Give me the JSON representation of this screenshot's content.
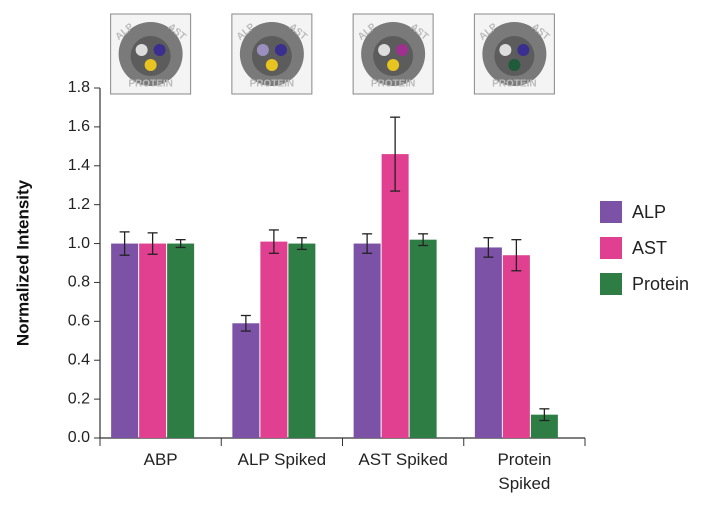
{
  "chart_data": {
    "type": "bar",
    "y_label": "Normalized Intensity",
    "categories": [
      "ABP",
      "ALP Spiked",
      "AST Spiked",
      "Protein Spiked"
    ],
    "series": [
      {
        "name": "ALP",
        "color": "#7b52a6",
        "values": [
          1.0,
          0.59,
          1.0,
          0.98
        ],
        "errors": [
          0.06,
          0.04,
          0.05,
          0.05
        ]
      },
      {
        "name": "AST",
        "color": "#e0408f",
        "values": [
          1.0,
          1.01,
          1.46,
          0.94
        ],
        "errors": [
          0.055,
          0.06,
          0.19,
          0.08
        ]
      },
      {
        "name": "Protein",
        "color": "#2e7d45",
        "values": [
          1.0,
          1.0,
          1.02,
          0.12
        ],
        "errors": [
          0.02,
          0.03,
          0.03,
          0.03
        ]
      }
    ],
    "ylim": [
      0,
      1.8
    ],
    "yticks": [
      {
        "value": 0,
        "label": "0.0"
      },
      0.2,
      0.4,
      0.6,
      0.8,
      {
        "value": 1,
        "label": "1.0"
      },
      1.2,
      1.4,
      1.6,
      1.8
    ],
    "device_labels": [
      "ALP",
      "AST",
      "PROTEIN"
    ]
  }
}
